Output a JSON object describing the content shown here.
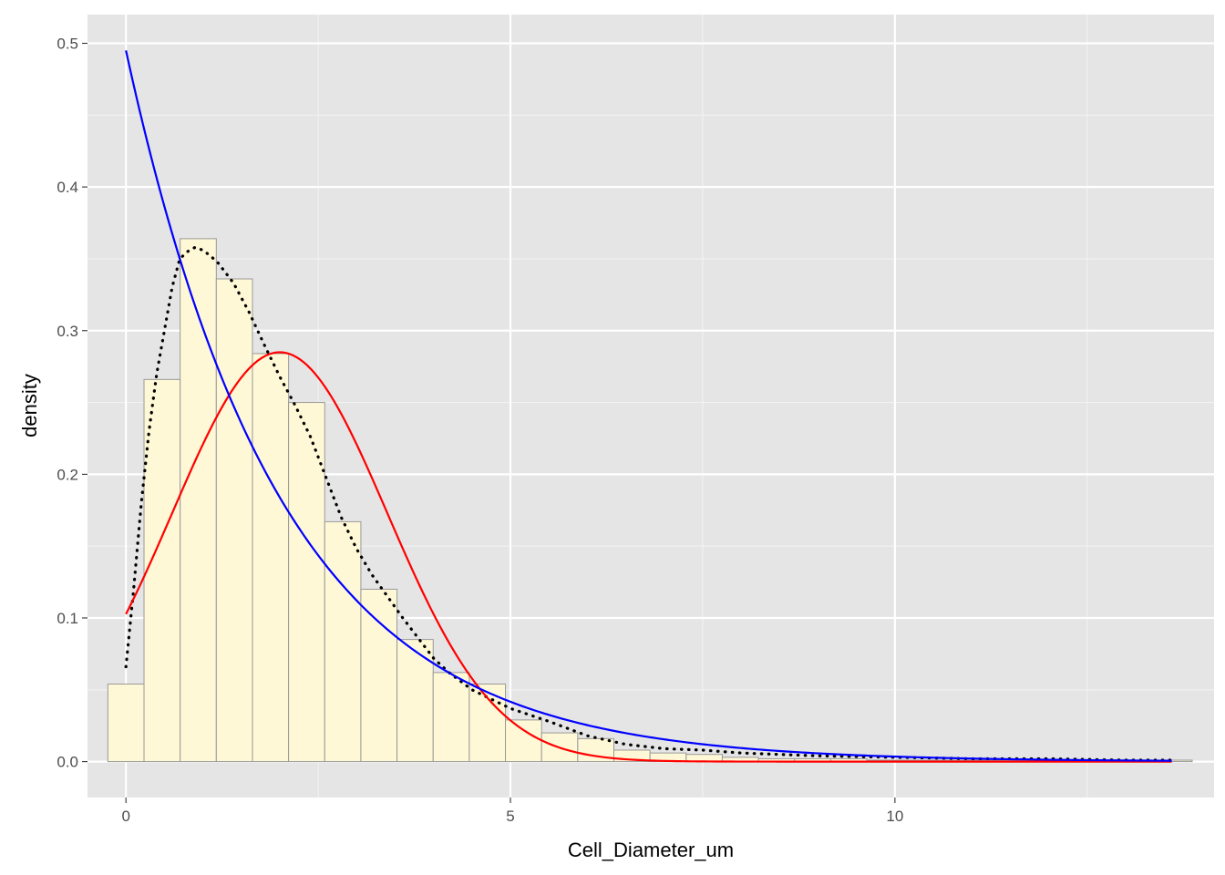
{
  "chart_data": {
    "type": "bar",
    "title": "",
    "xlabel": "Cell_Diameter_um",
    "ylabel": "density",
    "xlim": [
      -0.5,
      14.15
    ],
    "ylim": [
      -0.025,
      0.52
    ],
    "x_ticks": [
      0,
      5,
      10
    ],
    "x_tick_labels": [
      "0",
      "5",
      "10"
    ],
    "y_ticks": [
      0.0,
      0.1,
      0.2,
      0.3,
      0.4,
      0.5
    ],
    "y_tick_labels": [
      "0.0",
      "0.1",
      "0.2",
      "0.3",
      "0.4",
      "0.5"
    ],
    "grid": true,
    "histogram": {
      "bin_width": 0.47,
      "bin_starts": [
        -0.235,
        0.235,
        0.705,
        1.175,
        1.645,
        2.115,
        2.585,
        3.055,
        3.525,
        3.995,
        4.465,
        4.935,
        5.405,
        5.875,
        6.345,
        6.815,
        7.285,
        7.755,
        8.225,
        8.695,
        9.165,
        9.635,
        10.105,
        10.575,
        11.045,
        11.515,
        11.985,
        12.455,
        12.925,
        13.395
      ],
      "values": [
        0.054,
        0.266,
        0.364,
        0.336,
        0.284,
        0.25,
        0.167,
        0.12,
        0.085,
        0.062,
        0.054,
        0.029,
        0.02,
        0.016,
        0.008,
        0.006,
        0.005,
        0.003,
        0.002,
        0.002,
        0.002,
        0.001,
        0.001,
        0.001,
        0.001,
        0.001,
        0.001,
        0.001,
        0.001,
        0.001
      ],
      "fill": "#fff8d6",
      "stroke": "#999999"
    },
    "series": [
      {
        "style": "dotted",
        "color": "#000000",
        "x": [
          0.0,
          0.1,
          0.2,
          0.3,
          0.4,
          0.5,
          0.6,
          0.7,
          0.8,
          0.9,
          1.0,
          1.1,
          1.2,
          1.4,
          1.6,
          1.8,
          2.0,
          2.2,
          2.4,
          2.6,
          2.8,
          3.0,
          3.2,
          3.4,
          3.6,
          3.8,
          4.0,
          4.2,
          4.5,
          5.0,
          5.5,
          6.0,
          6.5,
          7.0,
          7.5,
          8.0,
          9.0,
          10.0,
          11.0,
          12.0,
          13.0,
          13.6
        ],
        "y": [
          0.066,
          0.12,
          0.18,
          0.23,
          0.27,
          0.3,
          0.33,
          0.35,
          0.355,
          0.358,
          0.356,
          0.352,
          0.347,
          0.333,
          0.313,
          0.29,
          0.268,
          0.248,
          0.226,
          0.198,
          0.17,
          0.148,
          0.13,
          0.115,
          0.1,
          0.086,
          0.072,
          0.062,
          0.05,
          0.037,
          0.028,
          0.018,
          0.012,
          0.009,
          0.008,
          0.006,
          0.004,
          0.003,
          0.002,
          0.002,
          0.001,
          0.001
        ]
      },
      {
        "style": "solid",
        "color": "#ff0000",
        "dist": "normal",
        "mean": 2.0,
        "sd": 1.4,
        "x_range": [
          0,
          13.6
        ]
      },
      {
        "style": "solid",
        "color": "#0000ff",
        "dist": "exponential",
        "rate": 0.495,
        "x_range": [
          0,
          13.6
        ]
      }
    ]
  }
}
